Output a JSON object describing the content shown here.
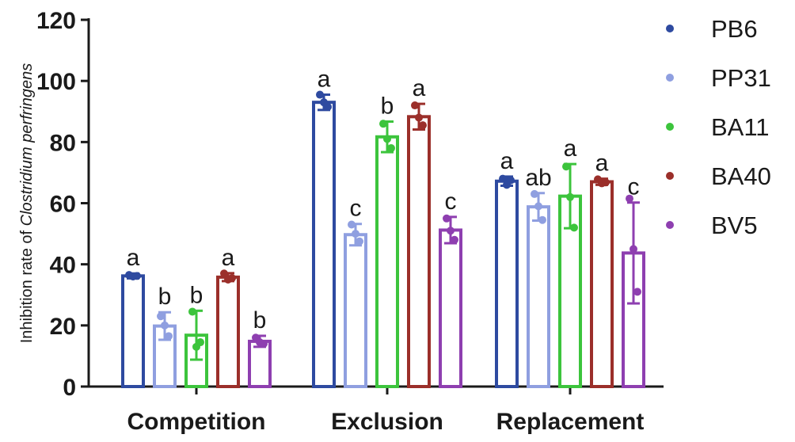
{
  "chart_data": {
    "type": "bar",
    "categories": [
      "Competition",
      "Exclusion",
      "Replacement"
    ],
    "ylabel_prefix": "Inhibition rate of ",
    "ylabel_italic": "Clostridium perfringens",
    "ylim": [
      0,
      120
    ],
    "yticks": [
      0,
      20,
      40,
      60,
      80,
      100,
      120
    ],
    "legend_position": "right",
    "grid": false,
    "series": [
      {
        "name": "PB6",
        "color": "#2e4aa0",
        "values": [
          36.2,
          93.0,
          67.2
        ],
        "error": [
          0.8,
          2.5,
          1.5
        ],
        "points": [
          [
            36.5,
            36.0,
            36.2
          ],
          [
            95.5,
            93.0,
            91.5
          ],
          [
            68.0,
            66.0,
            67.5
          ]
        ],
        "labels": [
          "a",
          "a",
          "a"
        ]
      },
      {
        "name": "PP31",
        "color": "#8f9fe0",
        "values": [
          19.8,
          49.7,
          58.8
        ],
        "error": [
          4.5,
          3.5,
          4.5
        ],
        "points": [
          [
            23.0,
            20.0,
            16.5
          ],
          [
            53.0,
            50.0,
            47.5
          ],
          [
            63.0,
            59.0,
            54.5
          ]
        ],
        "labels": [
          "b",
          "c",
          "ab"
        ]
      },
      {
        "name": "BA11",
        "color": "#3cc43c",
        "values": [
          16.8,
          81.7,
          62.3
        ],
        "error": [
          8.0,
          5.0,
          10.5
        ],
        "points": [
          [
            24.5,
            13.0,
            14.5
          ],
          [
            86.0,
            81.0,
            78.0
          ],
          [
            72.0,
            62.0,
            52.0
          ]
        ],
        "labels": [
          "b",
          "b",
          "a"
        ]
      },
      {
        "name": "BA40",
        "color": "#9b2f2a",
        "values": [
          35.8,
          88.3,
          67.0
        ],
        "error": [
          1.3,
          4.2,
          1.0
        ],
        "points": [
          [
            37.0,
            35.0,
            35.5
          ],
          [
            92.0,
            88.0,
            85.5
          ],
          [
            67.8,
            66.5,
            66.8
          ]
        ],
        "labels": [
          "a",
          "a",
          "a"
        ]
      },
      {
        "name": "BV5",
        "color": "#8e3fb0",
        "values": [
          14.8,
          51.2,
          43.7
        ],
        "error": [
          1.8,
          4.3,
          16.5
        ],
        "points": [
          [
            16.0,
            14.5,
            14.0
          ],
          [
            55.0,
            51.0,
            48.0
          ],
          [
            61.5,
            45.0,
            31.0
          ]
        ],
        "labels": [
          "b",
          "c",
          "c"
        ]
      }
    ]
  }
}
